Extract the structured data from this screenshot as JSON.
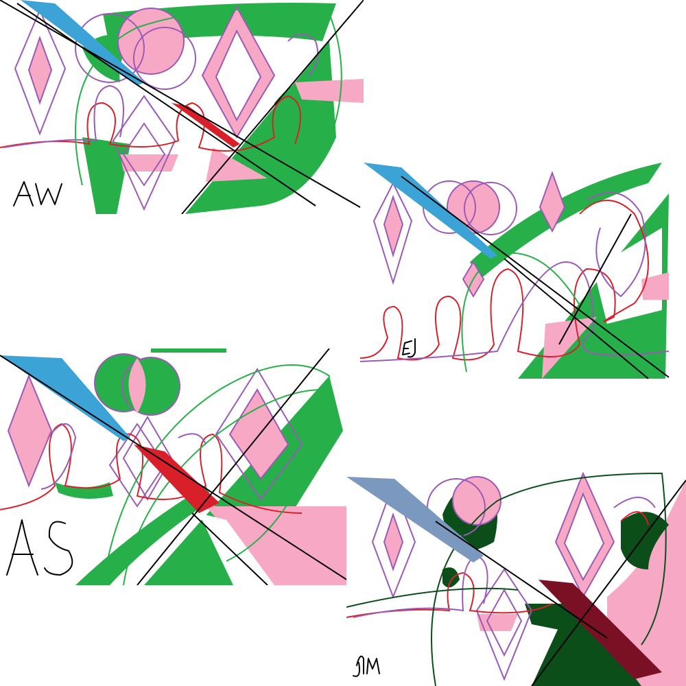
{
  "artwork": {
    "panels": [
      {
        "id": "p1",
        "signature": "AW"
      },
      {
        "id": "p2",
        "signature": "EJ"
      },
      {
        "id": "p3",
        "signature": "AS"
      },
      {
        "id": "p4",
        "signature": "JM"
      }
    ],
    "colors": {
      "pink": "#f7a8c4",
      "green": "#27b04a",
      "dark_green": "#0c4e1a",
      "purple": "#9b59b6",
      "red": "#d8202a",
      "cyan": "#3ba3d6",
      "slate_blue": "#7b98bf",
      "maroon": "#7a1024",
      "black": "#000000"
    },
    "motifs": [
      "diamond-outline",
      "venn-circles",
      "loop-scribble",
      "diagonal-stripe",
      "crossing-lines"
    ]
  }
}
